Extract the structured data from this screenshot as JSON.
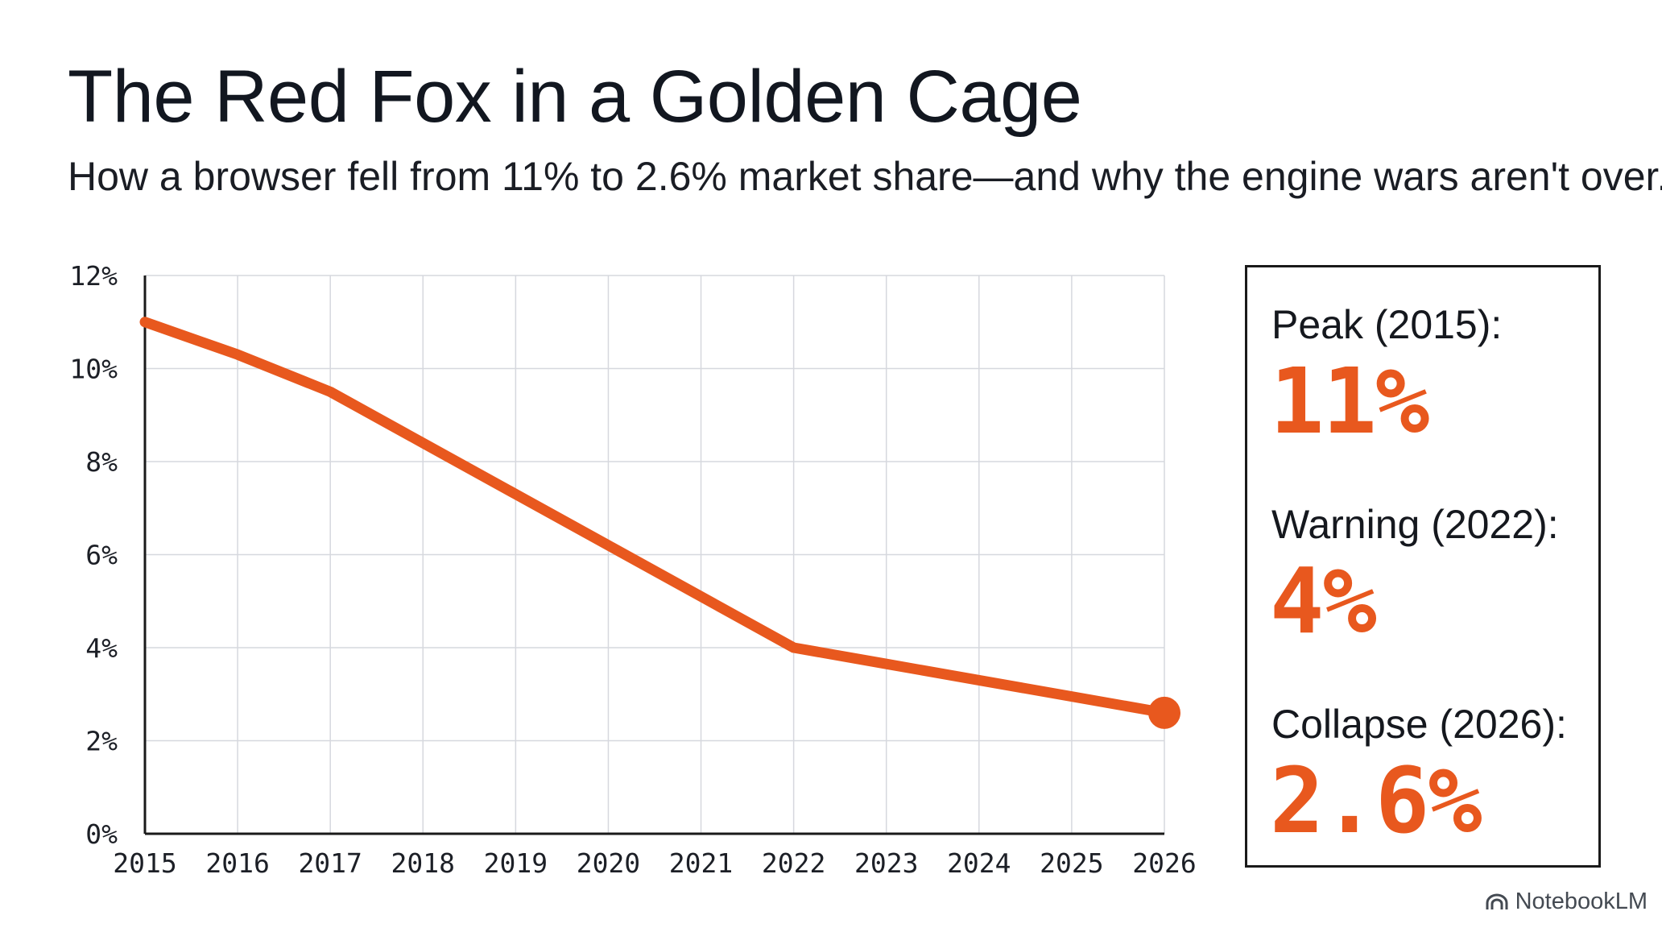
{
  "header": {
    "title": "The Red Fox in a Golden Cage",
    "subtitle": "How a browser fell from 11% to 2.6% market share—and why the engine wars aren't over."
  },
  "chart_data": {
    "type": "line",
    "title": "",
    "xlabel": "",
    "ylabel": "",
    "x": [
      2015,
      2016,
      2017,
      2018,
      2019,
      2020,
      2021,
      2022,
      2023,
      2024,
      2025,
      2026
    ],
    "series": [
      {
        "values": [
          11.0,
          10.3,
          9.5,
          8.4,
          7.3,
          6.2,
          5.1,
          4.0,
          3.65,
          3.3,
          2.95,
          2.6
        ]
      }
    ],
    "xticks": [
      "2015",
      "2016",
      "2017",
      "2018",
      "2019",
      "2020",
      "2021",
      "2022",
      "2023",
      "2024",
      "2025",
      "2026"
    ],
    "yticks": [
      "0%",
      "2%",
      "4%",
      "6%",
      "8%",
      "10%",
      "12%"
    ],
    "ylim": [
      0,
      12
    ],
    "grid": true,
    "legend": "none",
    "end_marker": true
  },
  "stats": [
    {
      "label": "Peak (2015):",
      "value": "11%"
    },
    {
      "label": "Warning (2022):",
      "value": "4%"
    },
    {
      "label": "Collapse (2026):",
      "value": "2.6%"
    }
  ],
  "colors": {
    "accent": "#e8581e",
    "grid": "#d6d8de",
    "axis": "#1a1a1a"
  },
  "branding": {
    "name": "NotebookLM",
    "icon": "notebooklm-logo-icon"
  }
}
